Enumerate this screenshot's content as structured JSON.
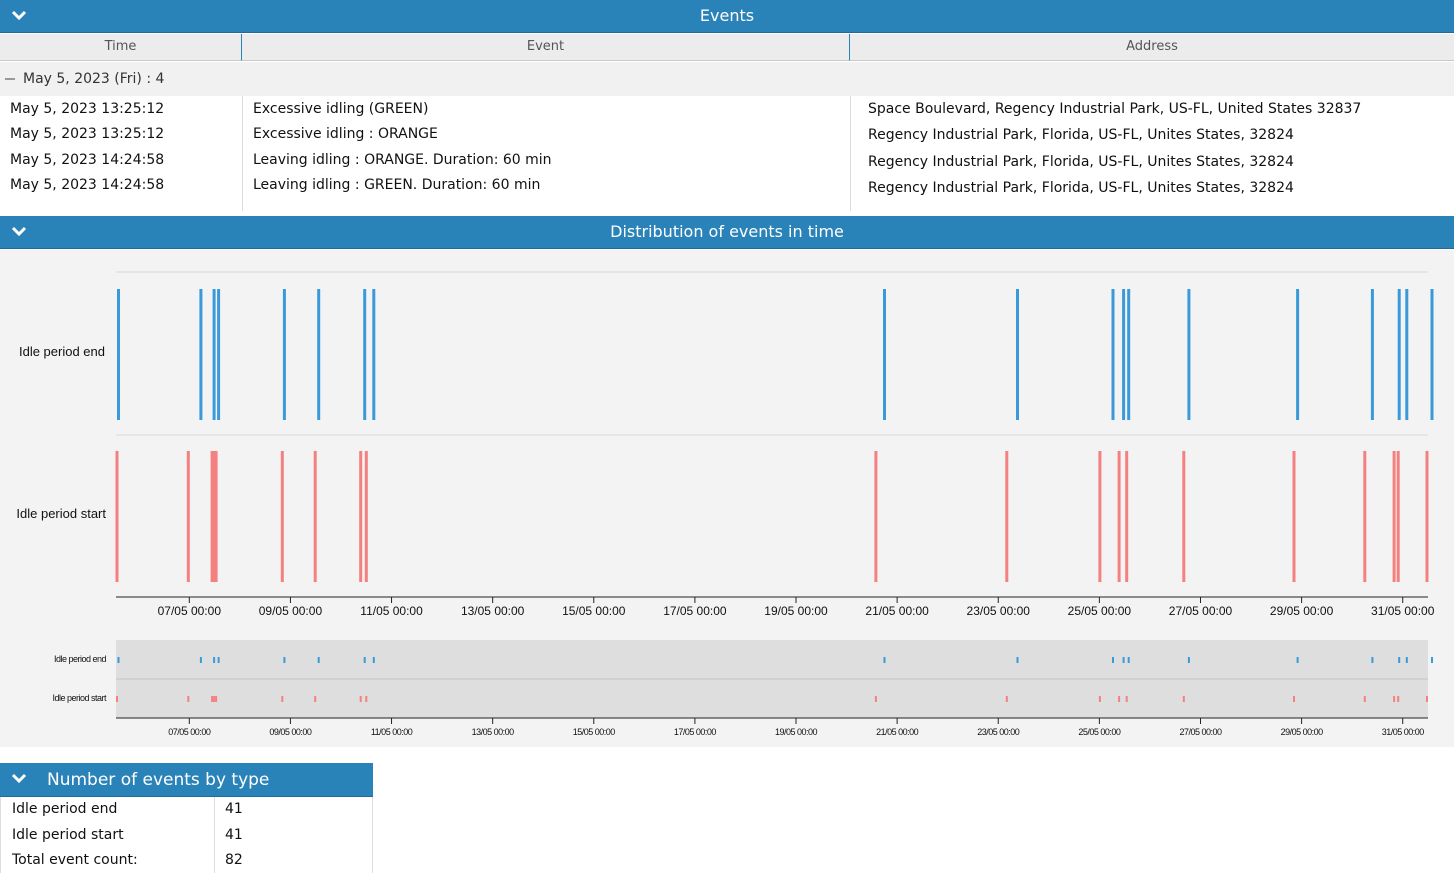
{
  "events_panel": {
    "title": "Events",
    "columns": [
      "Time",
      "Event",
      "Address"
    ],
    "group_label": "May 5, 2023 (Fri) : 4",
    "rows": [
      {
        "time": "May 5, 2023 13:25:12",
        "event": "Excessive idling (GREEN)",
        "address": "Space Boulevard, Regency Industrial Park, US-FL, United States 32837"
      },
      {
        "time": "May 5, 2023 13:25:12",
        "event": "Excessive idling : ORANGE",
        "address": "Regency Industrial Park, Florida, US-FL, Unites States, 32824"
      },
      {
        "time": "May 5, 2023 14:24:58",
        "event": "Leaving idling : ORANGE. Duration: 60 min",
        "address": "Regency Industrial Park, Florida, US-FL, Unites States, 32824"
      },
      {
        "time": "May 5, 2023 14:24:58",
        "event": "Leaving idling : GREEN. Duration: 60 min",
        "address": "Regency Industrial Park, Florida, US-FL, Unites States, 32824"
      }
    ]
  },
  "distribution_panel": {
    "title": "Distribution of events in time"
  },
  "chart_data": {
    "type": "scatter",
    "title": "Distribution of events in time",
    "x_unit": "day of May 2023",
    "xlim": [
      5.55,
      31.5
    ],
    "tick_labels": [
      "07/05 00:00",
      "09/05 00:00",
      "11/05 00:00",
      "13/05 00:00",
      "15/05 00:00",
      "17/05 00:00",
      "19/05 00:00",
      "21/05 00:00",
      "23/05 00:00",
      "25/05 00:00",
      "27/05 00:00",
      "29/05 00:00",
      "31/05 00:00"
    ],
    "tick_values": [
      7,
      9,
      11,
      13,
      15,
      17,
      19,
      21,
      23,
      25,
      27,
      29,
      31
    ],
    "series": [
      {
        "name": "Idle period end",
        "color": "#3a9ad9",
        "values": [
          5.6,
          7.23,
          7.49,
          7.58,
          8.88,
          9.56,
          10.47,
          10.65,
          20.75,
          23.38,
          25.27,
          25.48,
          25.58,
          26.77,
          28.92,
          30.4,
          30.93,
          31.08,
          31.58
        ]
      },
      {
        "name": "Idle period start",
        "color": "#f58080",
        "values": [
          5.57,
          6.98,
          7.45,
          7.49,
          7.53,
          8.84,
          9.49,
          10.39,
          10.5,
          20.58,
          23.17,
          25.01,
          25.39,
          25.54,
          26.67,
          28.85,
          30.25,
          30.83,
          30.91,
          31.48
        ]
      }
    ]
  },
  "count_panel": {
    "title": "Number of events by type",
    "rows": [
      {
        "label": "Idle period end",
        "value": "41"
      },
      {
        "label": "Idle period start",
        "value": "41"
      },
      {
        "label": "Total event count:",
        "value": "82"
      }
    ]
  }
}
